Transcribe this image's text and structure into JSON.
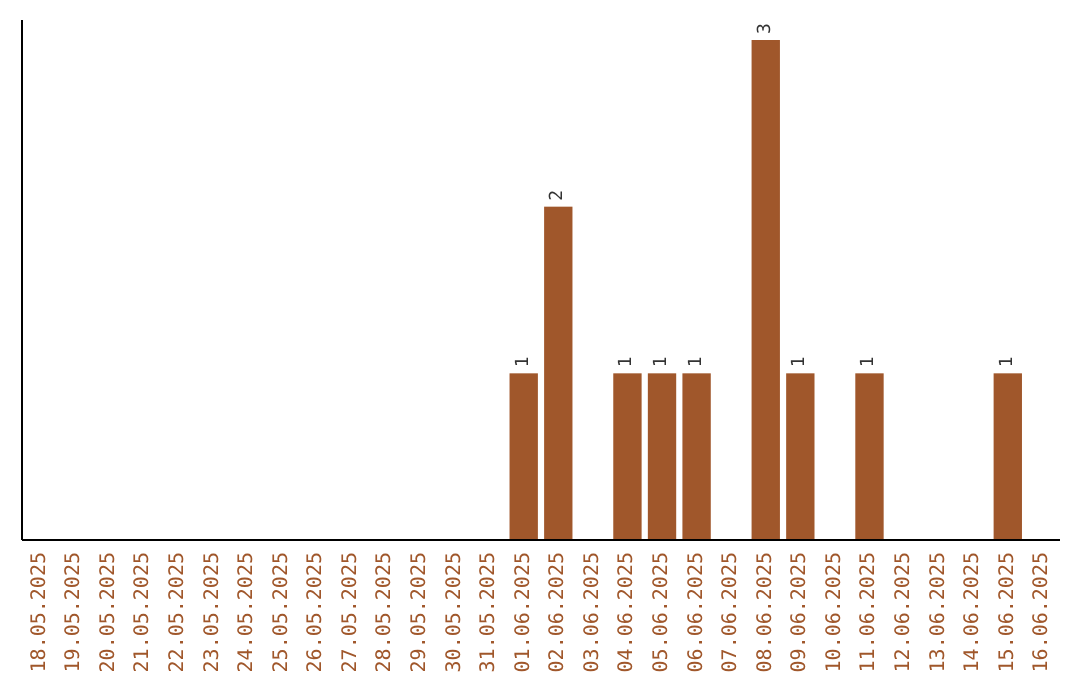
{
  "chart_data": {
    "type": "bar",
    "categories": [
      "18.05.2025",
      "19.05.2025",
      "20.05.2025",
      "21.05.2025",
      "22.05.2025",
      "23.05.2025",
      "24.05.2025",
      "25.05.2025",
      "26.05.2025",
      "27.05.2025",
      "28.05.2025",
      "29.05.2025",
      "30.05.2025",
      "31.05.2025",
      "01.06.2025",
      "02.06.2025",
      "03.06.2025",
      "04.06.2025",
      "05.06.2025",
      "06.06.2025",
      "07.06.2025",
      "08.06.2025",
      "09.06.2025",
      "10.06.2025",
      "11.06.2025",
      "12.06.2025",
      "13.06.2025",
      "14.06.2025",
      "15.06.2025",
      "16.06.2025"
    ],
    "values": [
      null,
      null,
      null,
      null,
      null,
      null,
      null,
      null,
      null,
      null,
      null,
      null,
      null,
      null,
      1,
      2,
      null,
      1,
      1,
      1,
      null,
      3,
      1,
      null,
      1,
      null,
      null,
      null,
      1,
      null
    ],
    "value_labels": [
      null,
      null,
      null,
      null,
      null,
      null,
      null,
      null,
      null,
      null,
      null,
      null,
      null,
      null,
      "1",
      "2",
      null,
      "1",
      "1",
      "1",
      null,
      "3",
      "1",
      null,
      "1",
      null,
      null,
      null,
      "1",
      null
    ],
    "color": "#a0572b",
    "tick_labels": "x",
    "grid": false
  }
}
